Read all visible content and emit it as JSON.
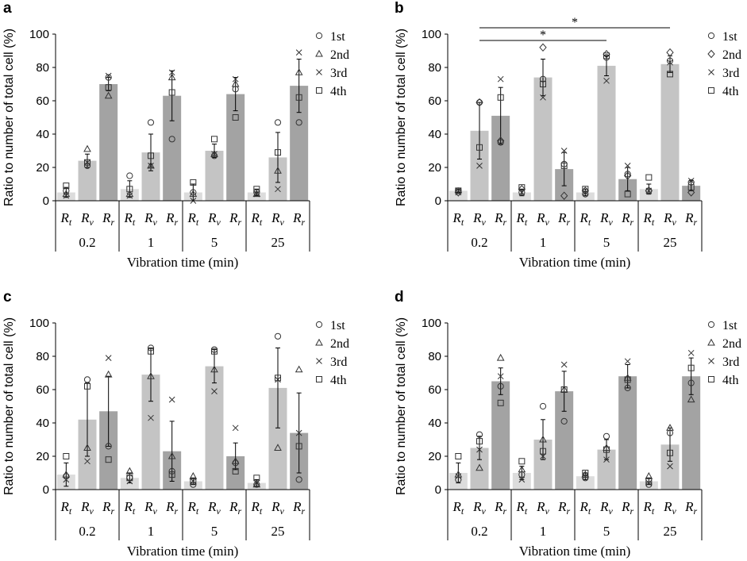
{
  "chart_data": [
    {
      "type": "bar",
      "panel": "a",
      "ylabel": "Ratio to number of total cell (%)",
      "xlabel": "Vibration time (min)",
      "ylim": [
        0,
        100
      ],
      "yticks": [
        0,
        20,
        40,
        60,
        80,
        100
      ],
      "groups": [
        "0.2",
        "1",
        "5",
        "25"
      ],
      "categories": [
        "Rt",
        "Rv",
        "Rr"
      ],
      "legend": [
        "1st",
        "2nd",
        "3rd",
        "4th"
      ],
      "bars": [
        {
          "mean": 5,
          "err": 3,
          "pts": [
            6,
            4,
            3,
            9
          ]
        },
        {
          "mean": 24,
          "err": 4,
          "pts": [
            21,
            31,
            23,
            23
          ]
        },
        {
          "mean": 70,
          "err": 4,
          "pts": [
            74,
            63,
            75,
            68
          ]
        },
        {
          "mean": 7,
          "err": 5,
          "pts": [
            15,
            4,
            3,
            7
          ]
        },
        {
          "mean": 29,
          "err": 11,
          "pts": [
            47,
            21,
            21,
            27
          ]
        },
        {
          "mean": 63,
          "err": 15,
          "pts": [
            37,
            74,
            77,
            65
          ]
        },
        {
          "mean": 5,
          "err": 5,
          "pts": [
            5,
            4,
            0,
            11
          ]
        },
        {
          "mean": 30,
          "err": 4,
          "pts": [
            27,
            28,
            28,
            37
          ]
        },
        {
          "mean": 64,
          "err": 10,
          "pts": [
            67,
            70,
            73,
            50
          ]
        },
        {
          "mean": 5,
          "err": 2,
          "pts": [
            5,
            4,
            4,
            7
          ]
        },
        {
          "mean": 26,
          "err": 15,
          "pts": [
            47,
            18,
            7,
            29
          ]
        },
        {
          "mean": 69,
          "err": 16,
          "pts": [
            47,
            77,
            89,
            62
          ]
        }
      ],
      "significance": []
    },
    {
      "type": "bar",
      "panel": "b",
      "ylabel": "Ratio to number of total cell (%)",
      "xlabel": "Vibration time (min)",
      "ylim": [
        0,
        100
      ],
      "yticks": [
        0,
        20,
        40,
        60,
        80,
        100
      ],
      "groups": [
        "0.2",
        "1",
        "5",
        "25"
      ],
      "categories": [
        "Rt",
        "Rv",
        "Rr"
      ],
      "legend": [
        "1st",
        "2nd",
        "3rd",
        "4th"
      ],
      "bars": [
        {
          "mean": 6,
          "err": 1,
          "pts": [
            6,
            5,
            5,
            6
          ]
        },
        {
          "mean": 42,
          "err": 17,
          "pts": [
            59,
            59,
            21,
            32
          ]
        },
        {
          "mean": 51,
          "err": 17,
          "pts": [
            35,
            36,
            73,
            62
          ]
        },
        {
          "mean": 5,
          "err": 2,
          "pts": [
            5,
            7,
            5,
            8
          ]
        },
        {
          "mean": 74,
          "err": 11,
          "pts": [
            73,
            92,
            62,
            70
          ]
        },
        {
          "mean": 19,
          "err": 10,
          "pts": [
            22,
            3,
            30,
            21
          ]
        },
        {
          "mean": 5,
          "err": 2,
          "pts": [
            4,
            6,
            5,
            7
          ]
        },
        {
          "mean": 81,
          "err": 6,
          "pts": [
            86,
            88,
            72,
            87
          ]
        },
        {
          "mean": 13,
          "err": 7,
          "pts": [
            16,
            15,
            21,
            4
          ]
        },
        {
          "mean": 7,
          "err": 3,
          "pts": [
            6,
            6,
            6,
            14
          ]
        },
        {
          "mean": 82,
          "err": 5,
          "pts": [
            84,
            89,
            83,
            76
          ]
        },
        {
          "mean": 9,
          "err": 3,
          "pts": [
            11,
            5,
            12,
            8
          ]
        }
      ],
      "significance": [
        {
          "from_bar": 1,
          "to_bar": 7,
          "label": "*"
        },
        {
          "from_bar": 1,
          "to_bar": 10,
          "label": "*"
        }
      ]
    },
    {
      "type": "bar",
      "panel": "c",
      "ylabel": "Ratio to number of total cell (%)",
      "xlabel": "Vibration time (min)",
      "ylim": [
        0,
        100
      ],
      "yticks": [
        0,
        20,
        40,
        60,
        80,
        100
      ],
      "groups": [
        "0.2",
        "1",
        "5",
        "25"
      ],
      "categories": [
        "Rt",
        "Rv",
        "Rr"
      ],
      "legend": [
        "1st",
        "2nd",
        "3rd",
        "4th"
      ],
      "bars": [
        {
          "mean": 9,
          "err": 7,
          "pts": [
            8,
            9,
            6,
            20
          ]
        },
        {
          "mean": 42,
          "err": 22,
          "pts": [
            66,
            25,
            17,
            62
          ]
        },
        {
          "mean": 47,
          "err": 21,
          "pts": [
            26,
            69,
            79,
            18
          ]
        },
        {
          "mean": 7,
          "err": 3,
          "pts": [
            7,
            11,
            5,
            7
          ]
        },
        {
          "mean": 69,
          "err": 16,
          "pts": [
            85,
            68,
            43,
            83
          ]
        },
        {
          "mean": 23,
          "err": 18,
          "pts": [
            11,
            20,
            54,
            9
          ]
        },
        {
          "mean": 5,
          "err": 2,
          "pts": [
            3,
            8,
            5,
            5
          ]
        },
        {
          "mean": 74,
          "err": 10,
          "pts": [
            84,
            72,
            59,
            83
          ]
        },
        {
          "mean": 20,
          "err": 8,
          "pts": [
            16,
            17,
            37,
            11
          ]
        },
        {
          "mean": 4,
          "err": 2,
          "pts": [
            3,
            3,
            4,
            7
          ]
        },
        {
          "mean": 61,
          "err": 24,
          "pts": [
            92,
            25,
            66,
            67
          ]
        },
        {
          "mean": 34,
          "err": 24,
          "pts": [
            6,
            72,
            34,
            26
          ]
        }
      ],
      "significance": []
    },
    {
      "type": "bar",
      "panel": "d",
      "ylabel": "Ratio to number of total cell (%)",
      "xlabel": "Vibration time (min)",
      "ylim": [
        0,
        100
      ],
      "yticks": [
        0,
        20,
        40,
        60,
        80,
        100
      ],
      "groups": [
        "0.2",
        "1",
        "5",
        "25"
      ],
      "categories": [
        "Rt",
        "Rv",
        "Rr"
      ],
      "legend": [
        "1st",
        "2nd",
        "3rd",
        "4th"
      ],
      "bars": [
        {
          "mean": 10,
          "err": 6,
          "pts": [
            6,
            9,
            8,
            20
          ]
        },
        {
          "mean": 25,
          "err": 7,
          "pts": [
            33,
            13,
            24,
            29
          ]
        },
        {
          "mean": 65,
          "err": 8,
          "pts": [
            62,
            79,
            68,
            52
          ]
        },
        {
          "mean": 10,
          "err": 4,
          "pts": [
            9,
            12,
            6,
            17
          ]
        },
        {
          "mean": 30,
          "err": 12,
          "pts": [
            50,
            30,
            20,
            23
          ]
        },
        {
          "mean": 59,
          "err": 12,
          "pts": [
            41,
            60,
            75,
            60
          ]
        },
        {
          "mean": 8,
          "err": 2,
          "pts": [
            7,
            9,
            8,
            10
          ]
        },
        {
          "mean": 24,
          "err": 6,
          "pts": [
            32,
            25,
            18,
            24
          ]
        },
        {
          "mean": 68,
          "err": 7,
          "pts": [
            61,
            67,
            77,
            66
          ]
        },
        {
          "mean": 5,
          "err": 2,
          "pts": [
            3,
            8,
            4,
            5
          ]
        },
        {
          "mean": 27,
          "err": 10,
          "pts": [
            34,
            37,
            14,
            22
          ]
        },
        {
          "mean": 68,
          "err": 11,
          "pts": [
            64,
            54,
            82,
            73
          ]
        }
      ],
      "significance": []
    }
  ],
  "colors": {
    "Rt": "#dcdcdc",
    "Rv": "#c4c4c4",
    "Rr": "#a3a3a3",
    "marker": "#333333",
    "axis": "#000000"
  }
}
